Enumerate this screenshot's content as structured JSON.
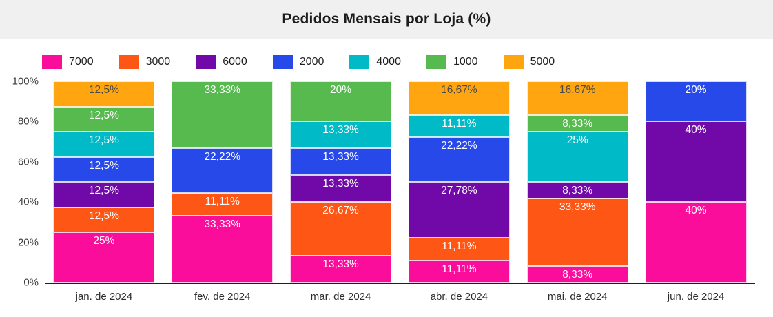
{
  "header": {
    "title": "Pedidos Mensais por Loja (%)"
  },
  "chart_data": {
    "type": "bar",
    "stacked": true,
    "unit": "percent",
    "title": "Pedidos Mensais por Loja (%)",
    "xlabel": "",
    "ylabel": "",
    "ylim": [
      0,
      100
    ],
    "grid": false,
    "legend_position": "top-left",
    "y_ticks": [
      "0%",
      "20%",
      "40%",
      "60%",
      "80%",
      "100%"
    ],
    "categories": [
      "jan. de 2024",
      "fev. de 2024",
      "mar. de 2024",
      "abr. de 2024",
      "mai. de 2024",
      "jun. de 2024"
    ],
    "default_label_color": "#ffffff",
    "series": [
      {
        "name": "7000",
        "color": "#FB0D9C",
        "values": [
          25,
          33.33,
          13.33,
          11.11,
          8.33,
          40
        ],
        "labels": [
          "25%",
          "33,33%",
          "13,33%",
          "11,11%",
          "8,33%",
          "40%"
        ]
      },
      {
        "name": "3000",
        "color": "#FE5614",
        "values": [
          12.5,
          11.11,
          26.67,
          11.11,
          33.33,
          0
        ],
        "labels": [
          "12,5%",
          "11,11%",
          "26,67%",
          "11,11%",
          "33,33%",
          ""
        ]
      },
      {
        "name": "6000",
        "color": "#7109A9",
        "values": [
          12.5,
          0,
          13.33,
          27.78,
          8.33,
          40
        ],
        "labels": [
          "12,5%",
          "",
          "13,33%",
          "27,78%",
          "8,33%",
          "40%"
        ]
      },
      {
        "name": "2000",
        "color": "#2849E9",
        "values": [
          12.5,
          22.22,
          13.33,
          22.22,
          0,
          20
        ],
        "labels": [
          "12,5%",
          "22,22%",
          "13,33%",
          "22,22%",
          "",
          "20%"
        ]
      },
      {
        "name": "4000",
        "color": "#00BAC7",
        "values": [
          12.5,
          0,
          13.33,
          11.11,
          25,
          0
        ],
        "labels": [
          "12,5%",
          "",
          "13,33%",
          "11,11%",
          "25%",
          ""
        ]
      },
      {
        "name": "1000",
        "color": "#56BA4E",
        "values": [
          12.5,
          33.33,
          20,
          0,
          8.33,
          0
        ],
        "labels": [
          "12,5%",
          "33,33%",
          "20%",
          "",
          "8,33%",
          ""
        ]
      },
      {
        "name": "5000",
        "color": "#FEA50F",
        "values": [
          12.5,
          0,
          0,
          16.67,
          16.67,
          0
        ],
        "labels": [
          "12,5%",
          "",
          "",
          "16,67%",
          "16,67%",
          ""
        ],
        "label_color": "#4a4a4a"
      }
    ]
  }
}
